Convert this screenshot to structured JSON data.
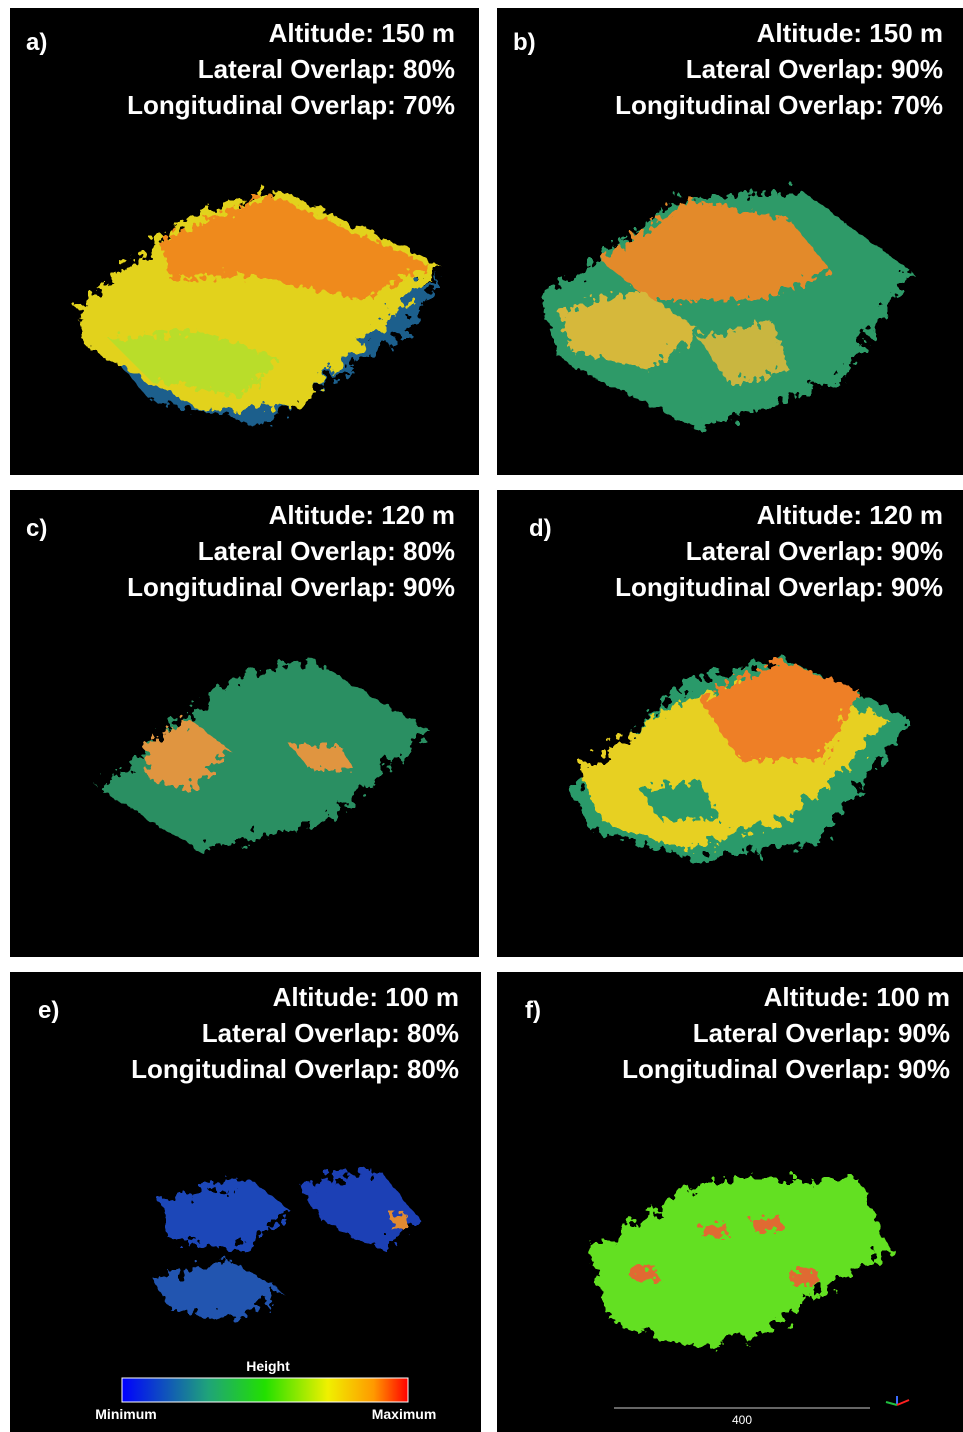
{
  "panels": [
    {
      "label": "a)",
      "altitude": "Altitude: 150 m",
      "lateral": "Lateral Overlap: 80%",
      "longitudinal": "Longitudinal Overlap: 70%"
    },
    {
      "label": "b)",
      "altitude": "Altitude: 150 m",
      "lateral": "Lateral Overlap: 90%",
      "longitudinal": "Longitudinal Overlap: 70%"
    },
    {
      "label": "c)",
      "altitude": "Altitude: 120 m",
      "lateral": "Lateral Overlap: 80%",
      "longitudinal": "Longitudinal Overlap: 90%"
    },
    {
      "label": "d)",
      "altitude": "Altitude: 120 m",
      "lateral": "Lateral Overlap: 90%",
      "longitudinal": "Longitudinal Overlap: 90%"
    },
    {
      "label": "e)",
      "altitude": "Altitude: 100 m",
      "lateral": "Lateral Overlap: 80%",
      "longitudinal": "Longitudinal Overlap: 80%"
    },
    {
      "label": "f)",
      "altitude": "Altitude: 100 m",
      "lateral": "Lateral Overlap: 90%",
      "longitudinal": "Longitudinal Overlap: 90%"
    }
  ],
  "colorbar": {
    "title": "Height",
    "min_label": "Minimum",
    "max_label": "Maximum"
  },
  "scale_bar": {
    "label": "400"
  }
}
